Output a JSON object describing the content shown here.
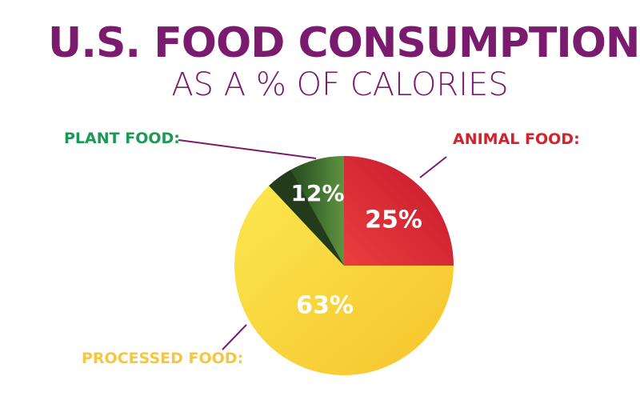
{
  "chart_data": {
    "type": "pie",
    "title": "U.S. FOOD CONSUMPTION",
    "subtitle": "AS A % OF CALORIES",
    "slices": [
      {
        "label": "ANIMAL FOOD:",
        "value": 25,
        "value_label": "25%",
        "color": "#d2232a",
        "label_color": "#d2232a"
      },
      {
        "label": "PROCESSED FOOD:",
        "value": 63,
        "value_label": "63%",
        "color": "#f7d531",
        "label_color": "#f5c544"
      },
      {
        "label": "PLANT FOOD:",
        "value": 12,
        "value_label": "12%",
        "color": "#3a6b2e",
        "label_color": "#1a9a52"
      }
    ],
    "start_angle": "12 o'clock",
    "direction": "clockwise",
    "legend": "none",
    "value_label_color": "#ffffff",
    "title_color": "#7a1b6e"
  }
}
